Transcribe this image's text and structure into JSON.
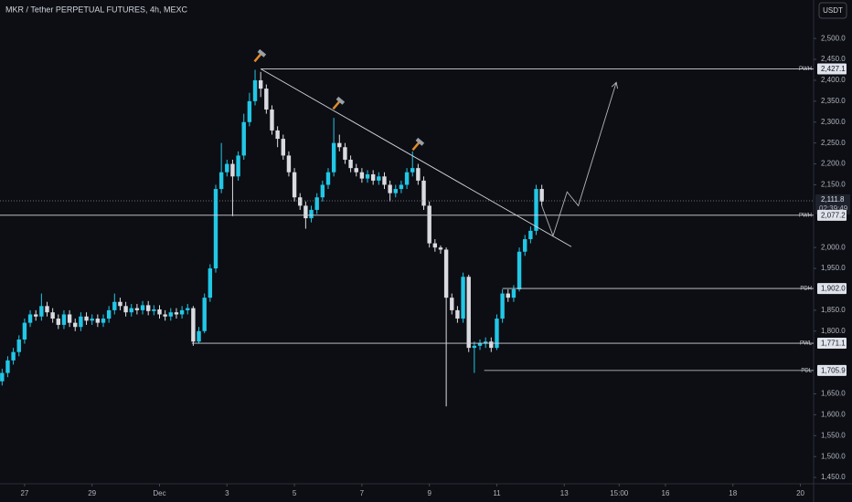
{
  "chart_data": {
    "type": "candlestick",
    "title": "MKR / Tether PERPETUAL FUTURES, 4h, MEXC",
    "currency": "USDT",
    "up_color": "#22c7e6",
    "down_color": "#d9dbe0",
    "x": [
      -16,
      -12,
      -8,
      -4,
      0,
      4,
      8,
      12,
      16,
      20,
      24,
      28,
      32,
      36,
      40,
      44,
      48,
      52,
      56,
      60,
      64,
      68,
      72,
      76,
      80,
      84,
      88,
      92,
      96,
      100,
      104,
      108,
      112,
      116,
      120,
      124,
      128,
      132,
      136,
      140,
      144,
      148,
      152,
      156,
      160,
      164,
      168,
      172,
      176,
      180,
      184,
      188,
      192,
      196,
      200,
      204,
      208,
      212,
      216,
      220,
      224,
      228,
      232,
      236,
      240,
      244,
      248,
      252,
      256,
      260,
      264,
      268,
      272,
      276,
      280,
      284,
      288,
      292,
      296,
      300,
      304,
      308,
      312,
      316,
      320,
      324,
      328,
      332,
      336,
      340,
      344,
      348,
      352,
      356,
      360,
      364,
      368
    ],
    "open": [
      1680,
      1700,
      1730,
      1750,
      1780,
      1820,
      1840,
      1835,
      1860,
      1845,
      1830,
      1815,
      1840,
      1820,
      1810,
      1835,
      1825,
      1830,
      1820,
      1830,
      1850,
      1870,
      1860,
      1845,
      1855,
      1850,
      1862,
      1848,
      1852,
      1840,
      1835,
      1845,
      1840,
      1850,
      1855,
      1775,
      1800,
      1880,
      1950,
      2140,
      2180,
      2200,
      2170,
      2220,
      2300,
      2350,
      2400,
      2380,
      2330,
      2280,
      2260,
      2220,
      2180,
      2120,
      2100,
      2070,
      2090,
      2120,
      2150,
      2180,
      2250,
      2240,
      2210,
      2190,
      2180,
      2165,
      2175,
      2160,
      2170,
      2150,
      2130,
      2140,
      2150,
      2180,
      2190,
      2160,
      2100,
      2010,
      2000,
      1995,
      1880,
      1850,
      1830,
      1930,
      1760,
      1765,
      1770,
      1775,
      1760,
      1830,
      1890,
      1880,
      1900,
      1990,
      2020,
      2040,
      2140
    ],
    "high": [
      1710,
      1740,
      1760,
      1790,
      1830,
      1850,
      1850,
      1890,
      1870,
      1855,
      1840,
      1850,
      1850,
      1830,
      1845,
      1845,
      1840,
      1840,
      1840,
      1860,
      1890,
      1880,
      1870,
      1865,
      1865,
      1872,
      1872,
      1862,
      1862,
      1850,
      1855,
      1855,
      1860,
      1865,
      1860,
      1810,
      1890,
      1960,
      2150,
      2250,
      2210,
      2210,
      2230,
      2320,
      2370,
      2425,
      2420,
      2390,
      2340,
      2290,
      2270,
      2230,
      2190,
      2130,
      2110,
      2100,
      2130,
      2160,
      2190,
      2310,
      2270,
      2250,
      2220,
      2200,
      2190,
      2185,
      2185,
      2180,
      2180,
      2160,
      2150,
      2160,
      2190,
      2230,
      2200,
      2170,
      2110,
      2020,
      2005,
      2000,
      1890,
      1860,
      1940,
      1935,
      1775,
      1780,
      1785,
      1785,
      1840,
      1900,
      1900,
      1910,
      2000,
      2030,
      2050,
      2150,
      2150
    ],
    "low": [
      1670,
      1690,
      1720,
      1740,
      1770,
      1810,
      1825,
      1825,
      1835,
      1820,
      1805,
      1805,
      1810,
      1800,
      1800,
      1815,
      1815,
      1810,
      1810,
      1820,
      1840,
      1850,
      1835,
      1835,
      1840,
      1840,
      1838,
      1838,
      1830,
      1825,
      1825,
      1830,
      1830,
      1840,
      1765,
      1770,
      1795,
      1870,
      1940,
      2130,
      2170,
      2075,
      2160,
      2210,
      2290,
      2340,
      2360,
      2320,
      2270,
      2240,
      2210,
      2170,
      2110,
      2090,
      2045,
      2060,
      2080,
      2110,
      2140,
      2170,
      2230,
      2200,
      2180,
      2170,
      2155,
      2155,
      2150,
      2150,
      2140,
      2110,
      2120,
      2130,
      2140,
      2170,
      2150,
      2090,
      2000,
      1990,
      1985,
      1620,
      1840,
      1820,
      1820,
      1750,
      1700,
      1755,
      1760,
      1750,
      1755,
      1820,
      1870,
      1870,
      1895,
      1980,
      2010,
      2030,
      2100
    ],
    "close": [
      1700,
      1730,
      1750,
      1780,
      1820,
      1840,
      1835,
      1860,
      1845,
      1830,
      1815,
      1840,
      1820,
      1810,
      1835,
      1825,
      1830,
      1820,
      1830,
      1850,
      1870,
      1860,
      1845,
      1855,
      1850,
      1862,
      1848,
      1852,
      1840,
      1835,
      1845,
      1840,
      1850,
      1855,
      1775,
      1800,
      1880,
      1950,
      2140,
      2180,
      2200,
      2170,
      2220,
      2300,
      2350,
      2400,
      2380,
      2330,
      2280,
      2260,
      2220,
      2180,
      2120,
      2100,
      2070,
      2090,
      2120,
      2150,
      2180,
      2250,
      2240,
      2210,
      2190,
      2180,
      2165,
      2175,
      2160,
      2170,
      2150,
      2130,
      2140,
      2150,
      2180,
      2190,
      2160,
      2100,
      2010,
      2000,
      1995,
      1880,
      1850,
      1830,
      1930,
      1760,
      1765,
      1770,
      1775,
      1760,
      1830,
      1890,
      1880,
      1900,
      1990,
      2020,
      2040,
      2140,
      2110
    ],
    "xlim": [
      -17.5,
      561.4
    ],
    "xticks": [
      {
        "value": 0,
        "label": "27"
      },
      {
        "value": 48,
        "label": "29"
      },
      {
        "value": 96,
        "label": "Dec"
      },
      {
        "value": 144,
        "label": "3"
      },
      {
        "value": 192,
        "label": "5"
      },
      {
        "value": 240,
        "label": "7"
      },
      {
        "value": 288,
        "label": "9"
      },
      {
        "value": 336,
        "label": "11"
      },
      {
        "value": 384,
        "label": "13"
      },
      {
        "value": 423,
        "label": "15:00"
      },
      {
        "value": 456,
        "label": "16"
      },
      {
        "value": 504,
        "label": "18"
      },
      {
        "value": 552,
        "label": "20"
      }
    ],
    "ylim": [
      1435,
      2592
    ],
    "yticks": [
      {
        "value": 2500,
        "label": "2,500.0"
      },
      {
        "value": 2450,
        "label": "2,450.0"
      },
      {
        "value": 2400,
        "label": "2,400.0"
      },
      {
        "value": 2350,
        "label": "2,350.0"
      },
      {
        "value": 2300,
        "label": "2,300.0"
      },
      {
        "value": 2250,
        "label": "2,250.0"
      },
      {
        "value": 2200,
        "label": "2,200.0"
      },
      {
        "value": 2150,
        "label": "2,150.0"
      },
      {
        "value": 2000,
        "label": "2,000.0"
      },
      {
        "value": 1950,
        "label": "1,950.0"
      },
      {
        "value": 1850,
        "label": "1,850.0"
      },
      {
        "value": 1800,
        "label": "1,800.0"
      },
      {
        "value": 1650,
        "label": "1,650.0"
      },
      {
        "value": 1600,
        "label": "1,600.0"
      },
      {
        "value": 1550,
        "label": "1,550.0"
      },
      {
        "value": 1500,
        "label": "1,500.0"
      },
      {
        "value": 1450,
        "label": "1,450.0"
      }
    ],
    "current_price": {
      "value": 2111.8,
      "label": "2,111.8",
      "countdown": "02:39:49"
    },
    "levels": [
      {
        "name": "PWH",
        "value": 2427.1,
        "value_label": "2,427.1",
        "start": 168
      },
      {
        "name": "PWH",
        "value": 2077.2,
        "value_label": "2,077.2"
      },
      {
        "name": "PDH",
        "value": 1902.0,
        "value_label": "1,902.0",
        "start": 340
      },
      {
        "name": "PWL",
        "value": 1771.1,
        "value_label": "1,771.1",
        "start": 119
      },
      {
        "name": "PDL",
        "value": 1705.9,
        "value_label": "1,705.9",
        "start": 327
      }
    ],
    "trendline": {
      "x": [
        168,
        389
      ],
      "y": [
        2427.1,
        2002
      ]
    },
    "projection": {
      "x": [
        368,
        376,
        386,
        394,
        421
      ],
      "y": [
        2100,
        2028,
        2133,
        2100,
        2395
      ]
    }
  }
}
